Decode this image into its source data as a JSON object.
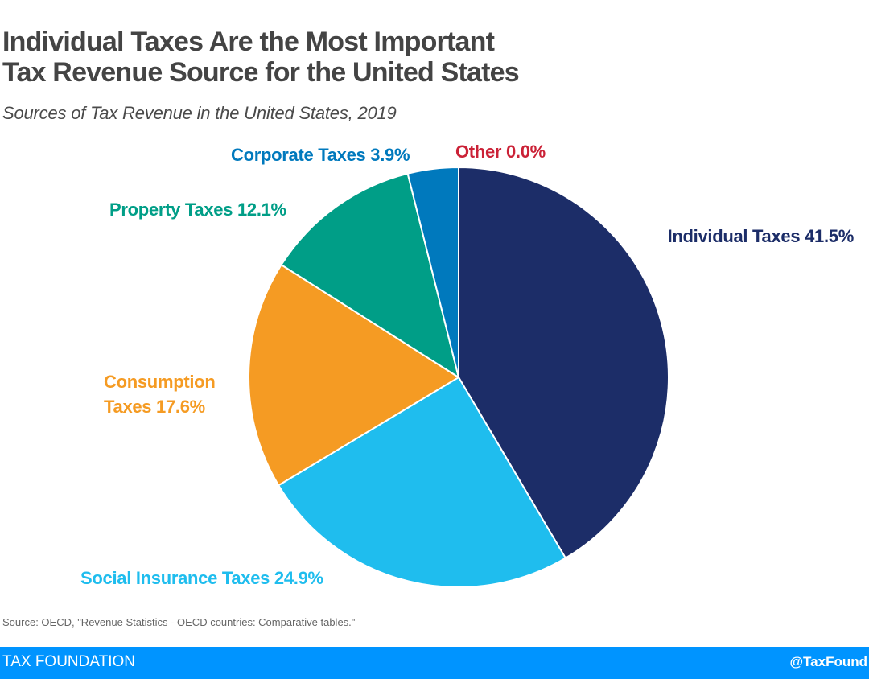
{
  "header": {
    "title_lines": [
      "Individual Taxes Are the Most Important",
      "Tax Revenue Source for the United States"
    ],
    "subtitle": "Sources of Tax Revenue in the United States, 2019"
  },
  "chart_data": {
    "type": "pie",
    "title": "Individual Taxes Are the Most Important Tax Revenue Source for the United States",
    "subtitle": "Sources of Tax Revenue in the United States, 2019",
    "unit": "%",
    "start": "top, clockwise",
    "slices": [
      {
        "name": "Individual Taxes",
        "value": 41.5,
        "label": "Individual Taxes 41.5%",
        "color": "#1c2d68"
      },
      {
        "name": "Social Insurance Taxes",
        "value": 24.9,
        "label": "Social Insurance Taxes 24.9%",
        "color": "#1fbdee"
      },
      {
        "name": "Consumption Taxes",
        "value": 17.6,
        "label_lines": [
          "Consumption",
          "Taxes 17.6%"
        ],
        "color": "#f59b23"
      },
      {
        "name": "Property Taxes",
        "value": 12.1,
        "label": "Property Taxes 12.1%",
        "color": "#009e87"
      },
      {
        "name": "Corporate Taxes",
        "value": 3.9,
        "label": "Corporate Taxes 3.9%",
        "color": "#0079bd"
      },
      {
        "name": "Other",
        "value": 0.0,
        "label": "Other 0.0%",
        "color": "#cb2237"
      }
    ]
  },
  "source": "Source: OECD, \"Revenue Statistics - OECD countries: Comparative tables.\"",
  "footer": {
    "brand": "TAX FOUNDATION",
    "handle": "@TaxFound",
    "color": "#0094ff"
  }
}
